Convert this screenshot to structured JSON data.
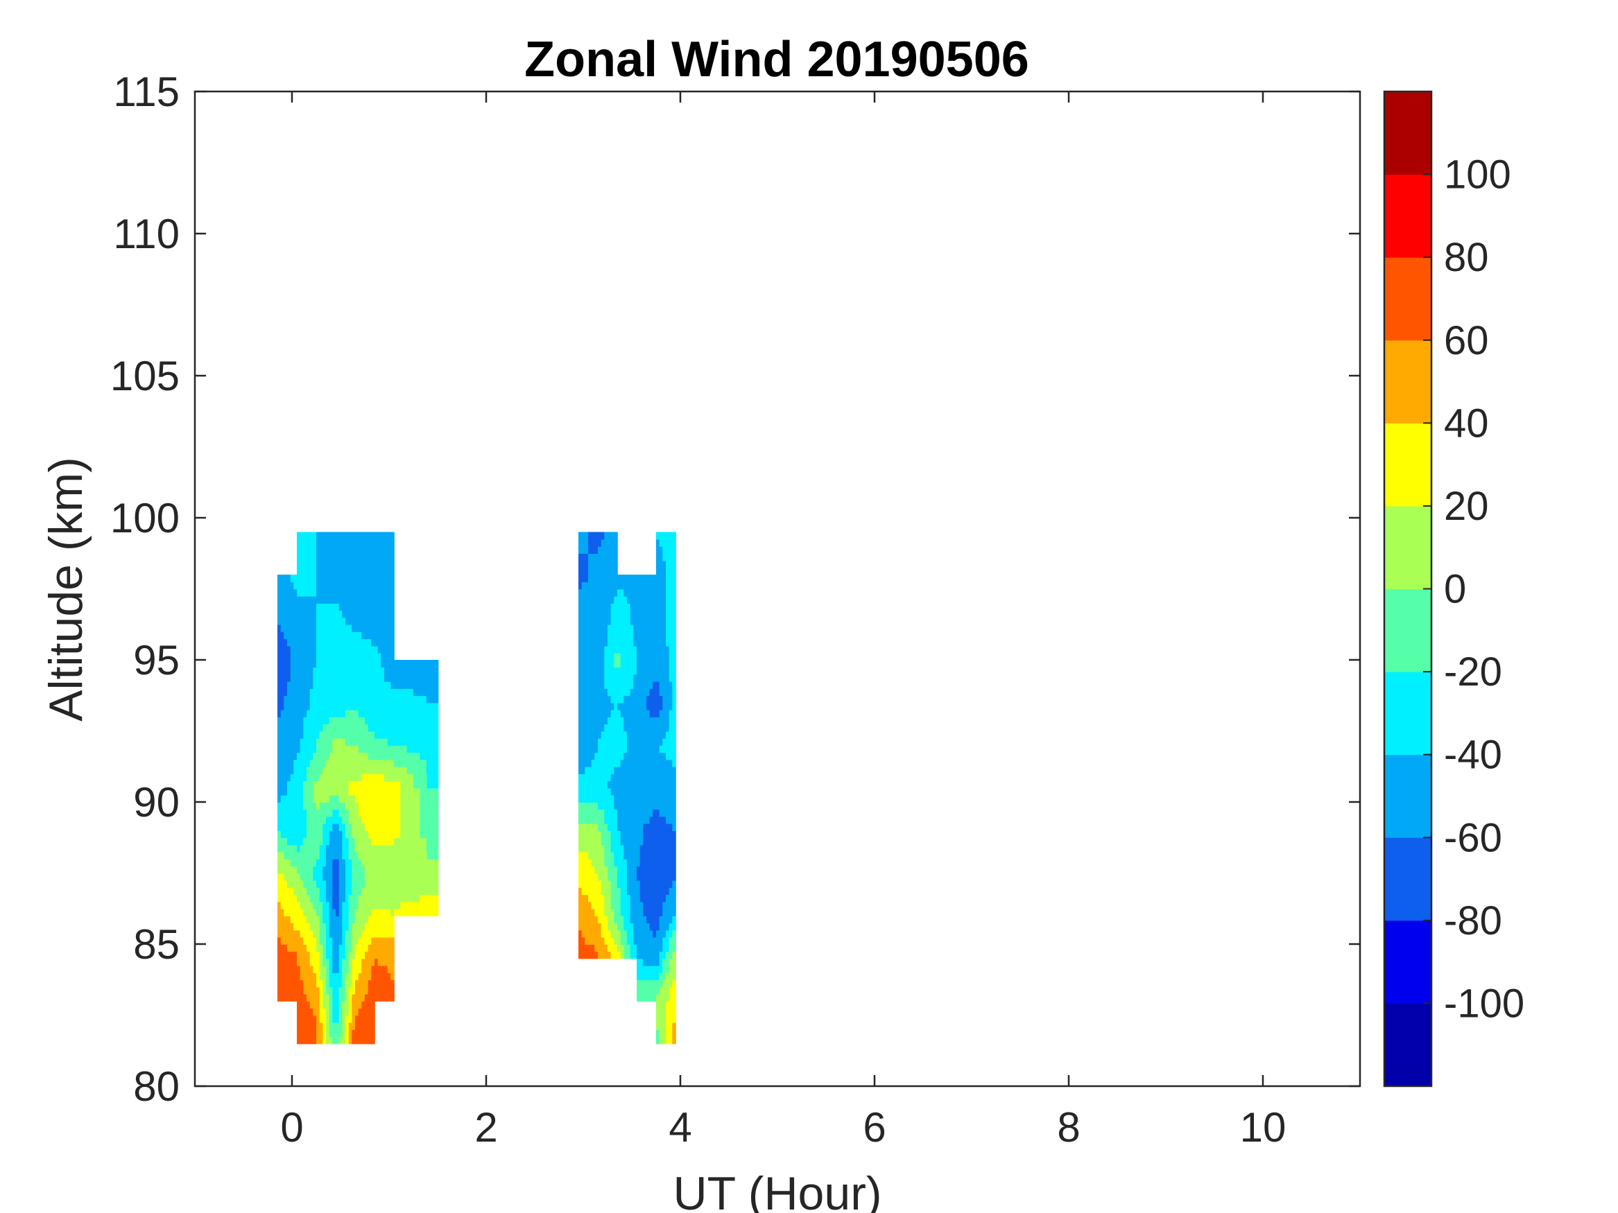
{
  "chart_data": {
    "type": "heatmap",
    "subtype": "filled-contour",
    "title": "Zonal Wind 20190506",
    "xlabel": "UT (Hour)",
    "ylabel": "Altitude (km)",
    "xlim": [
      -1,
      11
    ],
    "ylim": [
      80,
      115
    ],
    "x_ticks": [
      0,
      2,
      4,
      6,
      8,
      10
    ],
    "y_ticks": [
      80,
      85,
      90,
      95,
      100,
      105,
      110,
      115
    ],
    "grid": false,
    "colorbar": {
      "position": "right",
      "range": [
        -120,
        120
      ],
      "tick_values": [
        -100,
        -80,
        -60,
        -40,
        -20,
        0,
        20,
        40,
        60,
        80,
        100
      ],
      "levels": [
        -120,
        -100,
        -80,
        -60,
        -40,
        -20,
        0,
        20,
        40,
        60,
        80,
        100,
        120
      ],
      "colors": [
        "#0000aa",
        "#0000ee",
        "#0f5fee",
        "#00a8f5",
        "#00f0ff",
        "#55ffaa",
        "#aaff55",
        "#ffff00",
        "#ffaa00",
        "#ff5500",
        "#ff0000",
        "#aa0000"
      ]
    },
    "x_grid": [
      -0.15,
      0.05,
      0.25,
      0.45,
      0.65,
      0.85,
      1.05,
      1.45,
      2.95,
      3.15,
      3.35,
      3.55,
      3.75,
      3.95
    ],
    "y_grid": [
      81.5,
      83,
      84.5,
      86,
      87.5,
      89,
      90.5,
      92,
      93.5,
      95,
      96.5,
      98,
      99.5
    ],
    "z": [
      [
        null,
        65,
        68,
        -20,
        75,
        70,
        null,
        null,
        null,
        null,
        null,
        null,
        -10,
        55
      ],
      [
        65,
        68,
        55,
        -35,
        50,
        75,
        65,
        null,
        null,
        null,
        null,
        -5,
        5,
        35
      ],
      [
        70,
        62,
        30,
        -55,
        25,
        60,
        55,
        null,
        70,
        65,
        30,
        -40,
        -50,
        15
      ],
      [
        50,
        30,
        5,
        -65,
        0,
        25,
        20,
        35,
        55,
        40,
        -10,
        -55,
        -70,
        -35
      ],
      [
        25,
        5,
        -25,
        -70,
        -10,
        5,
        10,
        5,
        35,
        20,
        -20,
        -60,
        -75,
        -65
      ],
      [
        -20,
        -40,
        0,
        -55,
        10,
        30,
        25,
        -10,
        10,
        5,
        -40,
        -55,
        -70,
        -60
      ],
      [
        -50,
        -30,
        5,
        15,
        25,
        35,
        30,
        -20,
        -35,
        -35,
        -45,
        -45,
        -50,
        -45
      ],
      [
        -55,
        -45,
        -20,
        5,
        0,
        -15,
        -20,
        -30,
        -50,
        -40,
        -35,
        -45,
        -40,
        -35
      ],
      [
        -65,
        -50,
        -35,
        -30,
        -25,
        -35,
        -35,
        -40,
        -55,
        -45,
        -40,
        -45,
        -75,
        -30
      ],
      [
        -75,
        -55,
        -40,
        -35,
        -30,
        -35,
        -50,
        -45,
        -55,
        -50,
        -15,
        -40,
        -50,
        -35
      ],
      [
        -60,
        -45,
        -40,
        -35,
        -45,
        -50,
        -45,
        null,
        -50,
        -60,
        -30,
        -45,
        -55,
        -25
      ],
      [
        -45,
        -35,
        -40,
        -50,
        -60,
        -50,
        -45,
        null,
        -65,
        -55,
        -45,
        -40,
        -60,
        -20
      ],
      [
        null,
        -30,
        -40,
        -55,
        -45,
        -40,
        -45,
        null,
        -55,
        -65,
        -50,
        null,
        -35,
        -30
      ]
    ]
  }
}
